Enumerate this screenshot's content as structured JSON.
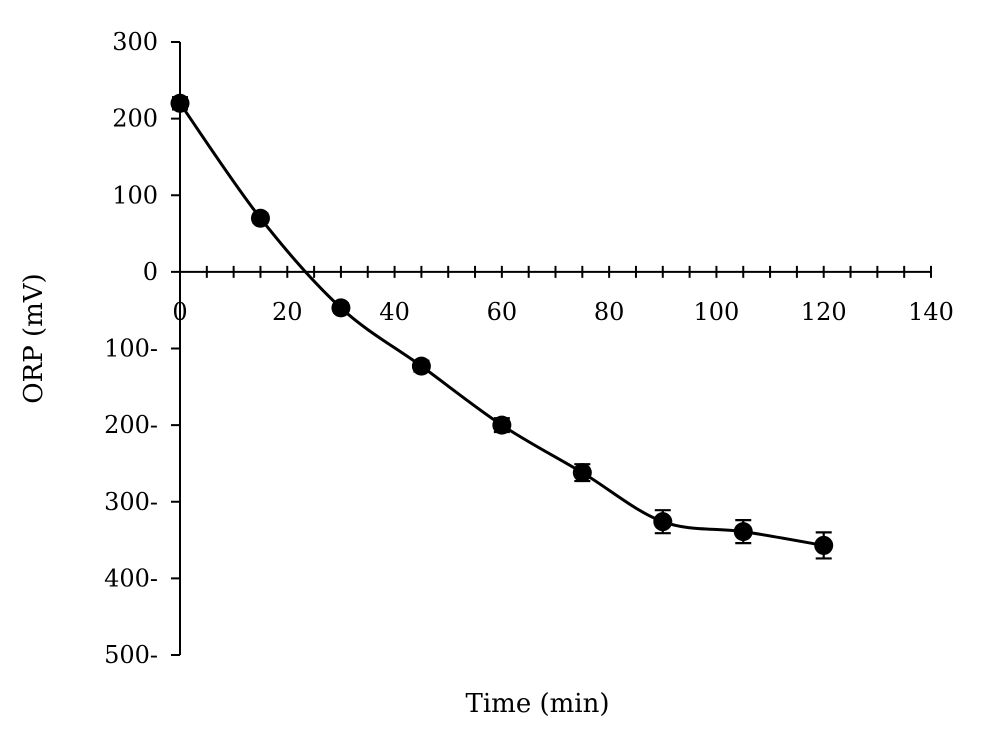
{
  "chart_data": {
    "type": "line",
    "title": "",
    "xlabel": "Time (min)",
    "ylabel": "ORP (mV)",
    "xlim": [
      0,
      140
    ],
    "ylim": [
      -500,
      300
    ],
    "x_ticks": [
      0,
      20,
      40,
      60,
      80,
      100,
      120,
      140
    ],
    "x_tick_labels": [
      "0",
      "20",
      "40",
      "60",
      "80",
      "100",
      "120",
      "140"
    ],
    "y_ticks": [
      300,
      200,
      100,
      0,
      -100,
      -200,
      -300,
      -400,
      -500
    ],
    "y_tick_labels": [
      "300",
      "200",
      "100",
      "0",
      "100-",
      "200-",
      "300-",
      "400-",
      "500-"
    ],
    "grid": false,
    "legend": "none",
    "series": [
      {
        "x": [
          0,
          15,
          30,
          45,
          60,
          75,
          90,
          105,
          120
        ],
        "y": [
          220,
          70,
          -47,
          -123,
          -200,
          -262,
          -326,
          -339,
          -357
        ],
        "error": [
          8,
          6,
          6,
          7,
          9,
          11,
          15,
          15,
          17
        ],
        "color": "#000000",
        "marker": "circle",
        "smooth": true
      }
    ]
  }
}
